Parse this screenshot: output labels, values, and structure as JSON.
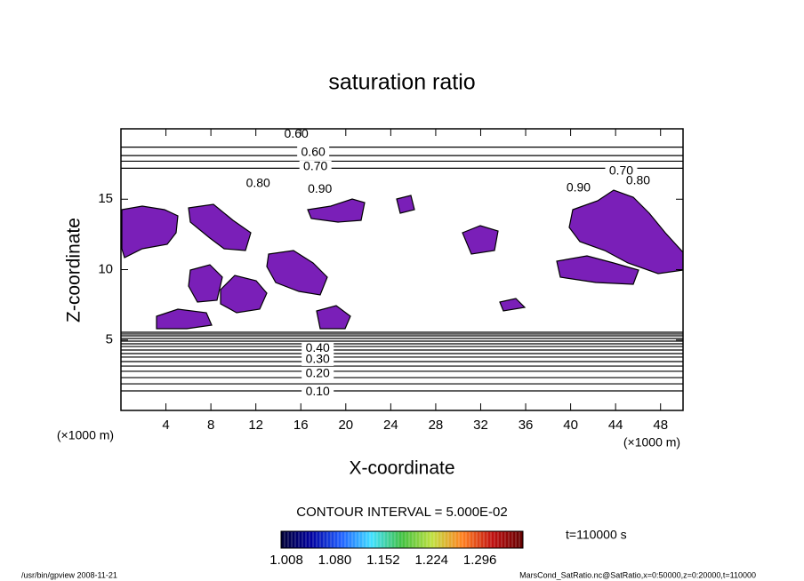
{
  "chart_data": {
    "type": "contour",
    "title": "saturation ratio",
    "x_label": "X-coordinate",
    "y_label": "Z-coordinate",
    "x_unit": "(×1000 m)",
    "y_unit": "(×1000 m)",
    "xlim": [
      0,
      50
    ],
    "ylim": [
      0,
      20
    ],
    "xticks": [
      4,
      8,
      12,
      16,
      20,
      24,
      28,
      32,
      36,
      40,
      44,
      48
    ],
    "yticks": [
      5,
      10,
      15
    ],
    "contours": {
      "z": [
        1.39,
        1.89,
        2.33,
        2.78,
        3.15,
        3.47,
        3.79,
        4.04,
        4.29,
        4.54,
        4.73,
        4.92,
        5.11,
        5.3,
        5.43,
        5.55,
        17.2,
        17.7,
        18.1,
        18.7
      ]
    },
    "contour_labels": [
      {
        "label": "0.60",
        "x": 15.6,
        "y": 19.6
      },
      {
        "label": "0.60",
        "x": 17.1,
        "y": 18.3
      },
      {
        "label": "0.70",
        "x": 17.3,
        "y": 17.3
      },
      {
        "label": "0.80",
        "x": 12.2,
        "y": 16.1
      },
      {
        "label": "0.90",
        "x": 17.7,
        "y": 15.7
      },
      {
        "label": "0.70",
        "x": 44.5,
        "y": 17.0
      },
      {
        "label": "0.80",
        "x": 46.0,
        "y": 16.3
      },
      {
        "label": "0.90",
        "x": 40.7,
        "y": 15.8
      },
      {
        "label": "0.40",
        "x": 17.5,
        "y": 4.4
      },
      {
        "label": "0.30",
        "x": 17.5,
        "y": 3.6
      },
      {
        "label": "0.20",
        "x": 17.5,
        "y": 2.6
      },
      {
        "label": "0.10",
        "x": 17.5,
        "y": 1.3
      }
    ],
    "contour_interval": "CONTOUR INTERVAL = 5.000E-02",
    "colorbar": {
      "clim": [
        1.0,
        1.36
      ],
      "ticks": [
        1.008,
        {
          "value": 1.08,
          "label": "1.080"
        },
        1.152,
        1.224,
        1.296
      ],
      "colors": [
        "#000033",
        "#0000a0",
        "#2060ff",
        "#40e0ff",
        "#40c040",
        "#c0e040",
        "#ff8020",
        "#c01010",
        "#600000"
      ]
    },
    "shade_color": "#7a1fb8",
    "time_label": "t=110000 s",
    "footer_left": "/usr/bin/gpview   2008-11-21",
    "footer_right": "MarsCond_SatRatio.nc@SatRatio,x=0:50000,z=0:20000,t=110000"
  }
}
